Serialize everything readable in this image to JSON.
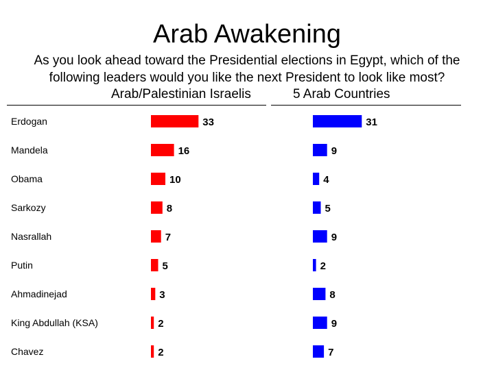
{
  "page": {
    "title": "Arab Awakening",
    "subtitle_line1": "As you look ahead toward the Presidential elections in Egypt, which of the",
    "subtitle_line2": "following leaders would you like the next President to look like most?",
    "left_heading": "Arab/Palestinian Israelis",
    "right_heading": "5 Arab Countries"
  },
  "colors": {
    "left_series": "#ff0000",
    "right_series": "#0000ff",
    "text": "#000000"
  },
  "chart_data": {
    "type": "bar",
    "orientation": "horizontal",
    "title": "Arab Awakening",
    "categories": [
      "Erdogan",
      "Mandela",
      "Obama",
      "Sarkozy",
      "Nasrallah",
      "Putin",
      "Ahmadinejad",
      "King Abdullah (KSA)",
      "Chavez"
    ],
    "series": [
      {
        "name": "Arab/Palestinian Israelis",
        "values": [
          33,
          16,
          10,
          8,
          7,
          5,
          3,
          2,
          2
        ]
      },
      {
        "name": "5 Arab Countries",
        "values": [
          31,
          9,
          4,
          5,
          9,
          2,
          8,
          9,
          7
        ]
      }
    ],
    "xlim": [
      0,
      35
    ],
    "grid": false,
    "legend": "none"
  }
}
